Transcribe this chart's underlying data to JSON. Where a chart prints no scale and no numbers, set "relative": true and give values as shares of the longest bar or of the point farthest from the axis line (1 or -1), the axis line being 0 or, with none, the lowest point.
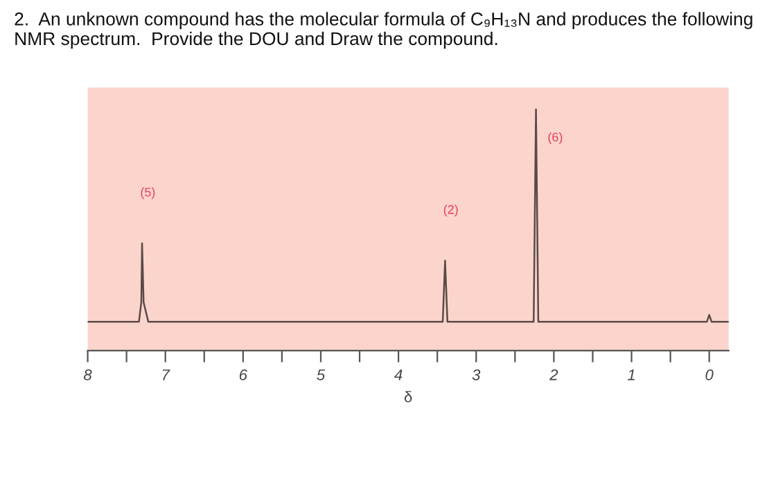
{
  "chart_data": {
    "type": "line",
    "title": "2.  An unknown compound has the molecular formula of C₉H₁₃N and produces the following NMR spectrum.  Provide the DOU and Draw the compound.",
    "xlabel": "δ",
    "relative": true,
    "tick_labels": "x",
    "x": [
      8.0,
      7.34,
      7.31,
      7.3,
      7.28,
      7.22,
      3.43,
      3.4,
      3.37,
      2.26,
      2.23,
      2.2,
      0.03,
      0.0,
      -0.03,
      -0.25
    ],
    "series": [
      {
        "color": "#5a4a48",
        "values": [
          0.12,
          0.12,
          0.2,
          0.445,
          0.2,
          0.12,
          0.12,
          0.373,
          0.12,
          0.12,
          1,
          0.12,
          0.12,
          0.148,
          0.12,
          0.12
        ]
      }
    ],
    "xlim": [
      8,
      -0.25
    ],
    "xticks": [
      8,
      {
        "value": 7.5,
        "label": null
      },
      7,
      {
        "value": 6.5,
        "label": null
      },
      6,
      {
        "value": 5.5,
        "label": null
      },
      5,
      {
        "value": 4.5,
        "label": null
      },
      4,
      {
        "value": 3.5,
        "label": null
      },
      3,
      {
        "value": 2.5,
        "label": null
      },
      2,
      {
        "value": 1.5,
        "label": null
      },
      1,
      {
        "value": 0.5,
        "label": null
      },
      0
    ],
    "annotations": [
      "(5)",
      "(2)",
      "(6)"
    ],
    "grid": false,
    "legend": false,
    "marker": "none",
    "line_style": "solid"
  }
}
